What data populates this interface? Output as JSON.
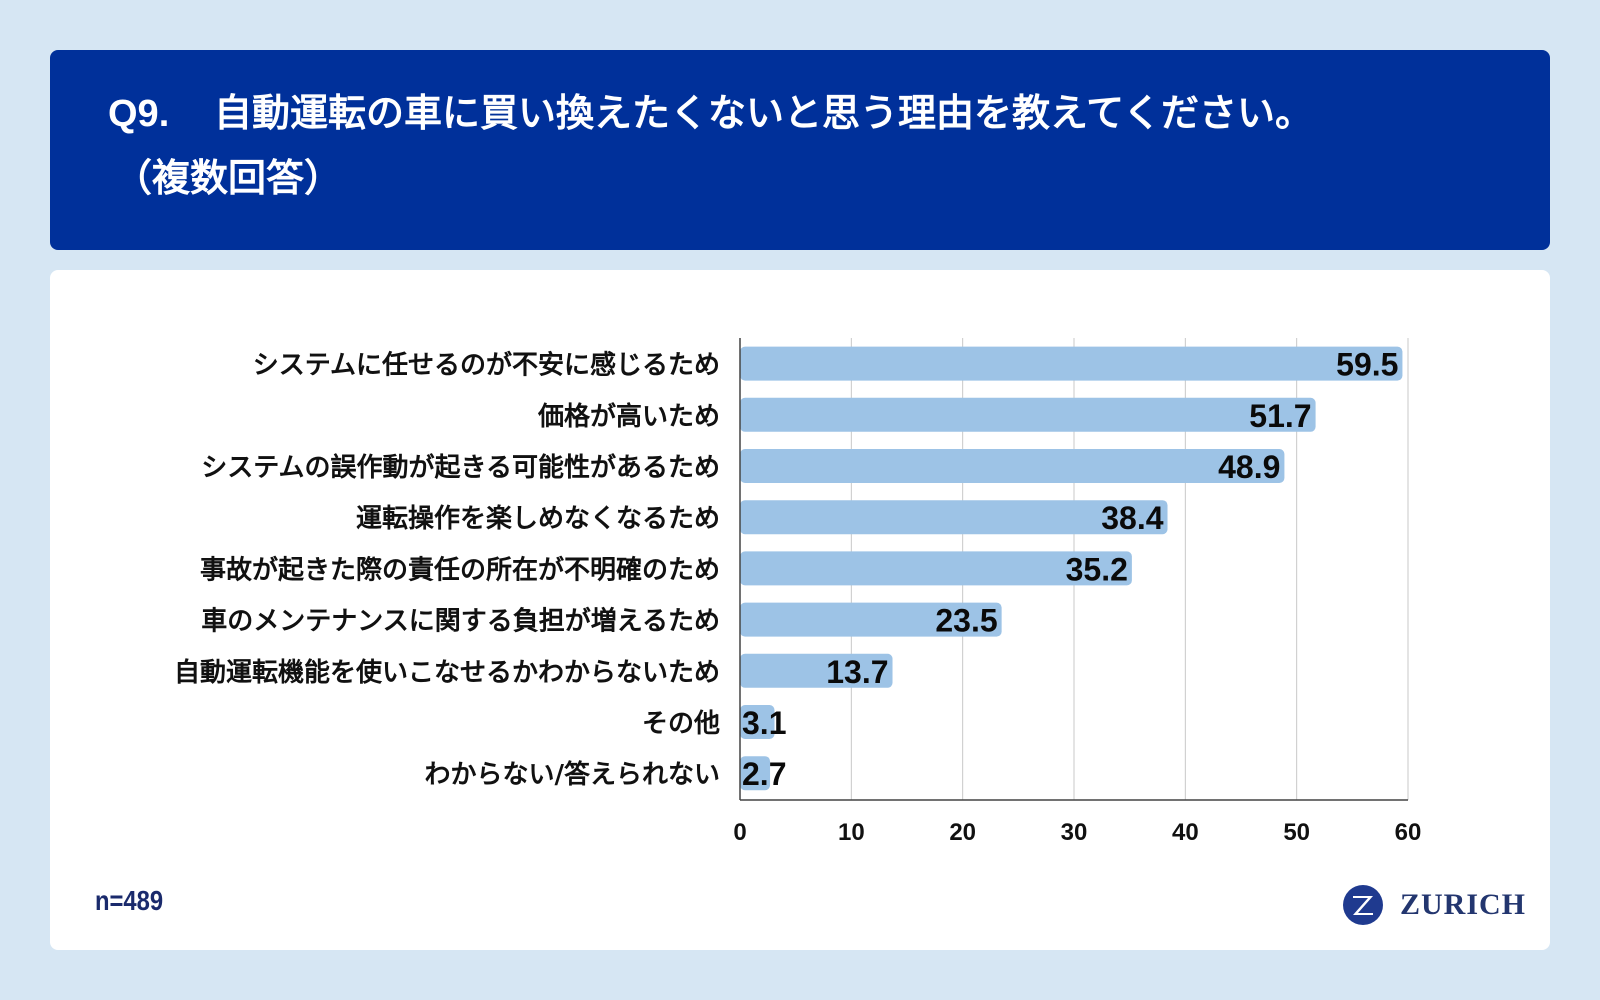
{
  "header": {
    "question_number": "Q9.",
    "question_text": "自動運転の車に買い換えたくないと思う理由を教えてください。",
    "question_note": "（複数回答）"
  },
  "footer": {
    "sample_size": "n=489",
    "brand": "ZURICH"
  },
  "colors": {
    "header_bg": "#00309a",
    "bar": "#9dc3e6",
    "page_bg": "#d6e6f3"
  },
  "chart_data": {
    "type": "bar",
    "orientation": "horizontal",
    "title": "",
    "xlabel": "",
    "ylabel": "",
    "xlim": [
      0,
      60
    ],
    "x_ticks": [
      "0",
      "10",
      "20",
      "30",
      "40",
      "50",
      "60"
    ],
    "grid": true,
    "categories": [
      "システムに任せるのが不安に感じるため",
      "価格が高いため",
      "システムの誤作動が起きる可能性があるため",
      "運転操作を楽しめなくなるため",
      "事故が起きた際の責任の所在が不明確のため",
      "車のメンテナンスに関する負担が増えるため",
      "自動運転機能を使いこなせるかわからないため",
      "その他",
      "わからない/答えられない"
    ],
    "values": [
      59.5,
      51.7,
      48.9,
      38.4,
      35.2,
      23.5,
      13.7,
      3.1,
      2.7
    ],
    "data_labels": [
      "59.5",
      "51.7",
      "48.9",
      "38.4",
      "35.2",
      "23.5",
      "13.7",
      "3.1",
      "2.7"
    ]
  }
}
